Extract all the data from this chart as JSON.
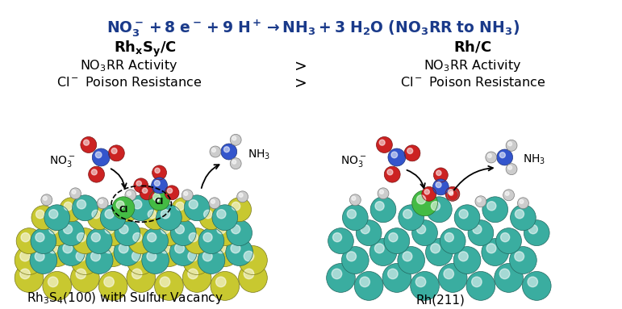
{
  "title_color": "#1a3a8a",
  "title_fontsize": 13.5,
  "header_fontsize": 13,
  "body_fontsize": 11.5,
  "caption_fontsize": 11,
  "bg_color": "#ffffff",
  "text_color": "#000000",
  "left_caption": "Rh$_3$S$_4$(100) with Sulfur Vacancy",
  "right_caption": "Rh(211)",
  "teal": "#3aada0",
  "sulfur_yellow": "#c8c830",
  "red_atom": "#cc2222",
  "blue_atom": "#3355cc",
  "white_atom": "#cccccc",
  "green_atom": "#44bb44",
  "black": "#000000"
}
